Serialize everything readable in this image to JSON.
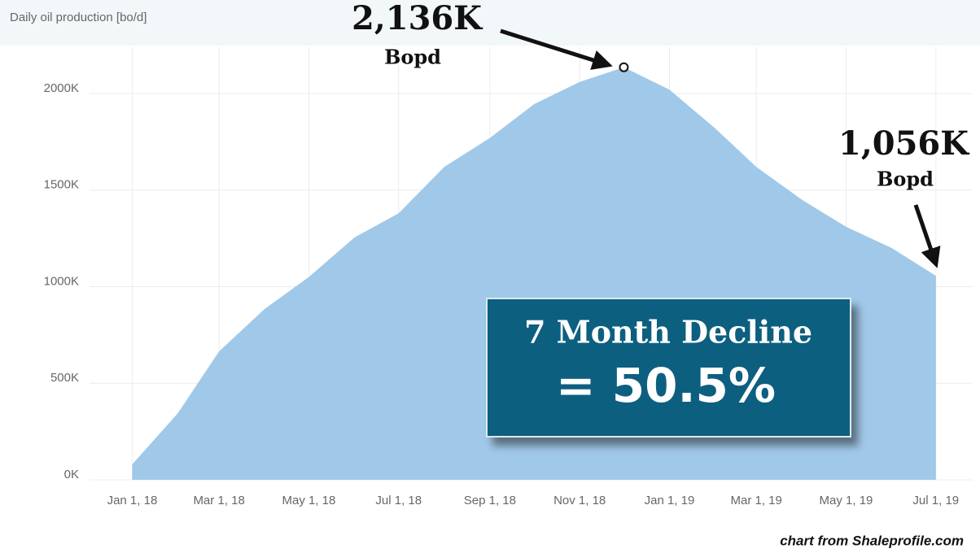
{
  "chart_data": {
    "type": "area",
    "title": "Daily oil production [bo/d]",
    "x": [
      "2018-01-01",
      "2018-02-01",
      "2018-03-01",
      "2018-04-01",
      "2018-05-01",
      "2018-06-01",
      "2018-07-01",
      "2018-08-01",
      "2018-09-01",
      "2018-10-01",
      "2018-11-01",
      "2018-12-01",
      "2019-01-01",
      "2019-02-01",
      "2019-03-01",
      "2019-04-01",
      "2019-05-01",
      "2019-06-01",
      "2019-07-01"
    ],
    "values": [
      80,
      345,
      665,
      885,
      1050,
      1255,
      1380,
      1620,
      1770,
      1945,
      2060,
      2136,
      2020,
      1820,
      1620,
      1450,
      1310,
      1200,
      1056
    ],
    "color": "#a0c8e8",
    "xlim": [
      "2017-12-03",
      "2019-07-26"
    ],
    "xticks": [
      {
        "value": "2018-01-01",
        "label": "Jan 1, 18"
      },
      {
        "value": "2018-03-01",
        "label": "Mar 1, 18"
      },
      {
        "value": "2018-05-01",
        "label": "May 1, 18"
      },
      {
        "value": "2018-07-01",
        "label": "Jul 1, 18"
      },
      {
        "value": "2018-09-01",
        "label": "Sep 1, 18"
      },
      {
        "value": "2018-11-01",
        "label": "Nov 1, 18"
      },
      {
        "value": "2019-01-01",
        "label": "Jan 1, 19"
      },
      {
        "value": "2019-03-01",
        "label": "Mar 1, 19"
      },
      {
        "value": "2019-05-01",
        "label": "May 1, 19"
      },
      {
        "value": "2019-07-01",
        "label": "Jul 1, 19"
      }
    ],
    "ylim": [
      0,
      2240
    ],
    "yticks": [
      {
        "value": 0,
        "label": "0K"
      },
      {
        "value": 500,
        "label": "500K"
      },
      {
        "value": 1000,
        "label": "1000K"
      },
      {
        "value": 1500,
        "label": "1500K"
      },
      {
        "value": 2000,
        "label": "2000K"
      }
    ],
    "grid": true,
    "annotations": [
      "2,136K",
      "Bopd",
      "1,056K",
      "Bopd",
      "7 Month Decline",
      "= 50.5%"
    ],
    "source": "chart from Shaleprofile.com"
  }
}
